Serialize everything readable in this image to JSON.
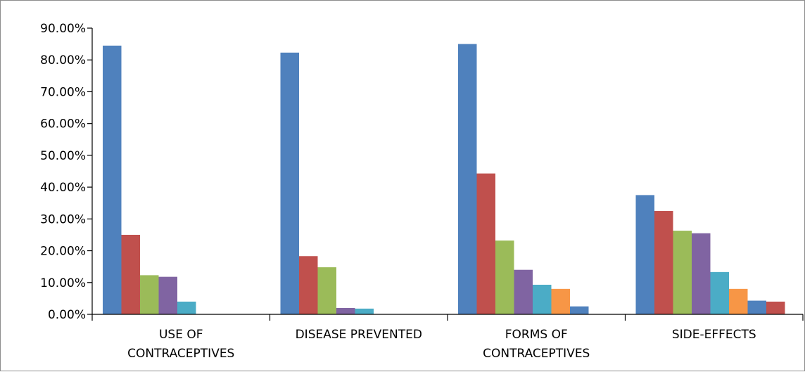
{
  "chart_data": {
    "type": "bar",
    "title": "",
    "xlabel": "",
    "ylabel": "",
    "ylim": [
      0,
      90
    ],
    "yticks": [
      "0.00%",
      "10.00%",
      "20.00%",
      "30.00%",
      "40.00%",
      "50.00%",
      "60.00%",
      "70.00%",
      "80.00%",
      "90.00%"
    ],
    "categories": [
      [
        "USE OF",
        "CONTRACEPTIVES"
      ],
      [
        "DISEASE PREVENTED"
      ],
      [
        "FORMS OF",
        "CONTRACEPTIVES"
      ],
      [
        "SIDE-EFFECTS"
      ]
    ],
    "grid": false,
    "legend": "none",
    "colors": [
      "#4F81BD",
      "#C0504D",
      "#9BBB59",
      "#8064A2",
      "#4BACC6",
      "#F79646",
      "#4F81BD",
      "#C0504D"
    ],
    "groups": [
      [
        84.5,
        25.0,
        12.3,
        11.8,
        4.0
      ],
      [
        82.3,
        18.3,
        14.8,
        2.0,
        1.8
      ],
      [
        85.0,
        44.3,
        23.2,
        14.0,
        9.3,
        8.0,
        2.5
      ],
      [
        37.5,
        32.5,
        26.3,
        25.5,
        13.3,
        8.0,
        4.3,
        4.0
      ]
    ]
  }
}
